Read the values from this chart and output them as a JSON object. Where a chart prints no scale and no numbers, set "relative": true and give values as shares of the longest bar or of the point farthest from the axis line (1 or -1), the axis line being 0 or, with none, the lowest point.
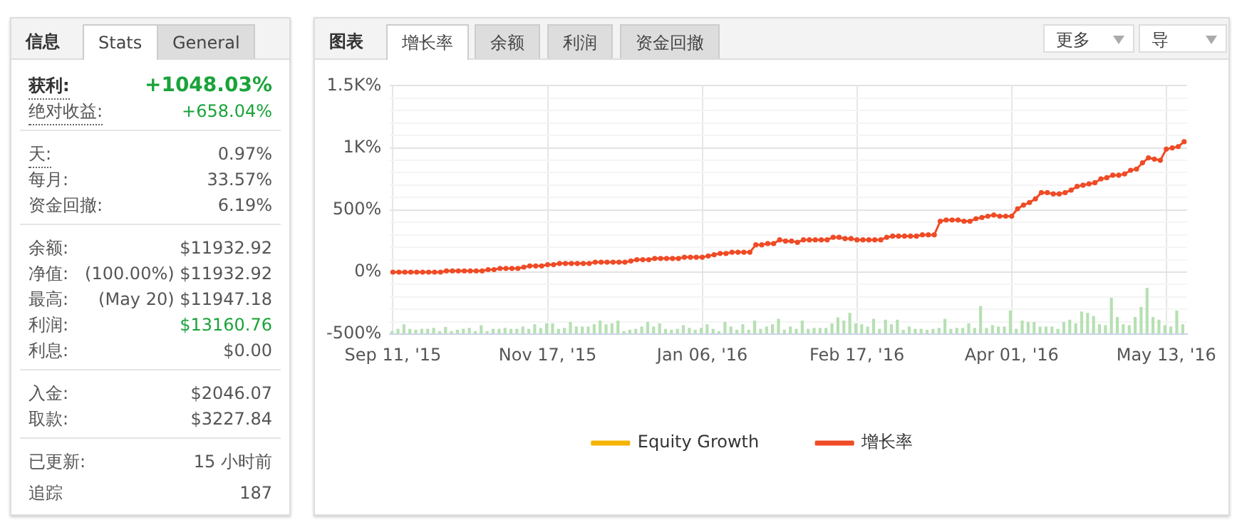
{
  "chart_data": [
    {
      "type": "other",
      "title": "信息",
      "annotations": [
        "Stats",
        "General",
        "获利:",
        "+1048.03%",
        "绝对收益:",
        "+658.04%",
        "天:",
        "0.97%",
        "每月:",
        "33.57%",
        "资金回撤:",
        "6.19%",
        "余额:",
        "$11932.92",
        "净值:",
        "(100.00%) $11932.92",
        "最高:",
        "(May 20) $11947.18",
        "利润:",
        "$13160.76",
        "利息:",
        "$0.00",
        "入金:",
        "$2046.07",
        "取款:",
        "$3227.84",
        "已更新:",
        "15 小时前",
        "追踪",
        "187"
      ]
    },
    {
      "type": "line",
      "title": "图表",
      "annotations": [
        "增长率",
        "余额",
        "利润",
        "资金回撤",
        "更多",
        "导"
      ],
      "categories": [
        "Sep 11, '15",
        null,
        null,
        null,
        null,
        null,
        null,
        null,
        null,
        null,
        null,
        null,
        null,
        null,
        null,
        null,
        null,
        null,
        null,
        null,
        null,
        null,
        null,
        null,
        null,
        null,
        "Nov 17, '15",
        null,
        null,
        null,
        null,
        null,
        null,
        null,
        null,
        null,
        null,
        null,
        null,
        null,
        null,
        null,
        null,
        null,
        null,
        null,
        null,
        null,
        null,
        null,
        null,
        null,
        "Jan 06, '16",
        null,
        null,
        null,
        null,
        null,
        null,
        null,
        null,
        null,
        null,
        null,
        null,
        null,
        null,
        null,
        null,
        null,
        null,
        null,
        null,
        null,
        null,
        null,
        null,
        null,
        "Feb 17, '16",
        null,
        null,
        null,
        null,
        null,
        null,
        null,
        null,
        null,
        null,
        null,
        null,
        null,
        null,
        null,
        null,
        null,
        null,
        null,
        null,
        null,
        null,
        null,
        null,
        null,
        "Apr 01, '16",
        null,
        null,
        null,
        null,
        null,
        null,
        null,
        null,
        null,
        null,
        null,
        null,
        null,
        null,
        null,
        null,
        null,
        null,
        null,
        null,
        null,
        null,
        null,
        null,
        null,
        "May 13, '16",
        null,
        null,
        null
      ],
      "series": [
        {
          "name": "Equity Growth",
          "color": "#f5b400",
          "values": [
            null,
            null,
            null,
            null,
            null,
            null,
            null,
            null,
            null,
            null,
            null,
            null,
            null,
            null,
            null,
            null,
            null,
            null,
            null,
            null,
            null,
            null,
            null,
            null,
            null,
            null,
            null,
            null,
            null,
            null,
            null,
            null,
            null,
            null,
            null,
            null,
            null,
            null,
            null,
            null,
            null,
            null,
            null,
            null,
            null,
            null,
            null,
            null,
            null,
            null,
            null,
            null,
            null,
            null,
            null,
            null,
            null,
            null,
            null,
            null,
            null,
            null,
            null,
            null,
            null,
            null,
            null,
            null,
            null,
            null,
            null,
            null,
            null,
            null,
            null,
            null,
            null,
            null,
            null,
            null,
            null,
            null,
            null,
            null,
            null,
            null,
            null,
            null,
            null,
            null,
            null,
            null,
            null,
            null,
            null,
            null,
            null,
            null,
            null,
            null,
            null,
            null,
            null,
            null,
            null,
            null,
            null,
            null,
            null,
            null,
            null,
            null,
            null,
            null,
            null,
            null,
            null,
            null,
            null,
            null,
            null,
            null,
            null,
            null,
            null,
            null,
            null,
            null,
            null,
            null,
            null,
            null,
            null,
            null
          ]
        },
        {
          "name": "增长率",
          "color": "#ef4b26",
          "values": [
            0,
            0,
            0,
            0,
            0,
            0,
            0,
            0,
            0,
            10,
            10,
            10,
            10,
            10,
            10,
            10,
            20,
            20,
            30,
            30,
            30,
            30,
            40,
            50,
            50,
            50,
            60,
            60,
            70,
            70,
            70,
            70,
            70,
            70,
            80,
            80,
            80,
            80,
            80,
            80,
            90,
            100,
            100,
            100,
            110,
            110,
            110,
            110,
            110,
            120,
            120,
            120,
            120,
            130,
            140,
            150,
            150,
            160,
            160,
            160,
            160,
            220,
            220,
            230,
            230,
            260,
            250,
            250,
            240,
            260,
            260,
            260,
            260,
            260,
            280,
            280,
            270,
            270,
            260,
            260,
            260,
            260,
            260,
            280,
            290,
            290,
            290,
            290,
            290,
            300,
            300,
            300,
            410,
            420,
            420,
            420,
            410,
            410,
            430,
            440,
            450,
            460,
            450,
            450,
            450,
            510,
            540,
            560,
            590,
            640,
            640,
            630,
            630,
            640,
            660,
            690,
            700,
            710,
            720,
            750,
            760,
            780,
            780,
            790,
            820,
            830,
            880,
            920,
            910,
            900,
            990,
            1000,
            1010,
            1050
          ]
        }
      ],
      "ylim": [
        -500,
        1500
      ],
      "yticks": [
        {
          "value": -500,
          "label": "-500%"
        },
        {
          "value": -400,
          "label": null
        },
        {
          "value": -300,
          "label": null
        },
        {
          "value": -200,
          "label": null
        },
        {
          "value": -100,
          "label": null
        },
        {
          "value": 0,
          "label": "0%"
        },
        {
          "value": 100,
          "label": null
        },
        {
          "value": 200,
          "label": null
        },
        {
          "value": 300,
          "label": null
        },
        {
          "value": 400,
          "label": null
        },
        {
          "value": 500,
          "label": "500%"
        },
        {
          "value": 600,
          "label": null
        },
        {
          "value": 700,
          "label": null
        },
        {
          "value": 800,
          "label": null
        },
        {
          "value": 900,
          "label": null
        },
        {
          "value": 1000,
          "label": "1K%"
        },
        {
          "value": 1100,
          "label": null
        },
        {
          "value": 1200,
          "label": null
        },
        {
          "value": 1300,
          "label": null
        },
        {
          "value": 1400,
          "label": null
        },
        {
          "value": 1500,
          "label": "1.5K%"
        }
      ],
      "grid": true,
      "legend": "bottom",
      "marker": "circle",
      "line_style": "solid"
    },
    {
      "type": "bar",
      "relative": true,
      "color": "#b6e0b2",
      "categories": [
        null,
        null,
        null,
        null,
        null,
        null,
        null,
        null,
        null,
        null,
        null,
        null,
        null,
        null,
        null,
        null,
        null,
        null,
        null,
        null,
        null,
        null,
        null,
        null,
        null,
        null,
        null,
        null,
        null,
        null,
        null,
        null,
        null,
        null,
        null,
        null,
        null,
        null,
        null,
        null,
        null,
        null,
        null,
        null,
        null,
        null,
        null,
        null,
        null,
        null,
        null,
        null,
        null,
        null,
        null,
        null,
        null,
        null,
        null,
        null,
        null,
        null,
        null,
        null,
        null,
        null,
        null,
        null,
        null,
        null,
        null,
        null,
        null,
        null,
        null,
        null,
        null,
        null,
        null,
        null,
        null,
        null,
        null,
        null,
        null,
        null,
        null,
        null,
        null,
        null,
        null,
        null,
        null,
        null,
        null,
        null,
        null,
        null,
        null,
        null,
        null,
        null,
        null,
        null,
        null,
        null,
        null,
        null,
        null,
        null,
        null,
        null,
        null,
        null,
        null,
        null,
        null,
        null,
        null,
        null,
        null,
        null,
        null,
        null,
        null,
        null,
        null,
        null,
        null,
        null,
        null,
        null,
        null,
        null
      ],
      "values": [
        0.05,
        0.1,
        0.2,
        0.1,
        0.08,
        0.1,
        0.1,
        0.12,
        0.05,
        0.14,
        0.05,
        0.08,
        0.1,
        0.12,
        0.05,
        0.18,
        0.05,
        0.1,
        0.1,
        0.12,
        0.1,
        0.1,
        0.15,
        0.1,
        0.2,
        0.12,
        0.22,
        0.22,
        0.1,
        0.12,
        0.25,
        0.15,
        0.15,
        0.15,
        0.2,
        0.28,
        0.2,
        0.22,
        0.28,
        0.05,
        0.08,
        0.1,
        0.15,
        0.25,
        0.15,
        0.22,
        0.1,
        0.08,
        0.1,
        0.18,
        0.12,
        0.08,
        0.12,
        0.2,
        0.1,
        0.05,
        0.25,
        0.15,
        0.08,
        0.2,
        0.08,
        0.28,
        0.1,
        0.15,
        0.2,
        0.32,
        0.08,
        0.15,
        0.1,
        0.28,
        0.1,
        0.12,
        0.12,
        0.12,
        0.22,
        0.35,
        0.28,
        0.45,
        0.22,
        0.2,
        0.15,
        0.32,
        0.1,
        0.3,
        0.2,
        0.3,
        0.08,
        0.15,
        0.1,
        0.1,
        0.08,
        0.1,
        0.12,
        0.32,
        0.1,
        0.12,
        0.12,
        0.22,
        0.12,
        0.6,
        0.12,
        0.18,
        0.15,
        0.15,
        0.5,
        0.1,
        0.28,
        0.25,
        0.25,
        0.15,
        0.15,
        0.15,
        0.1,
        0.25,
        0.3,
        0.22,
        0.48,
        0.45,
        0.38,
        0.2,
        0.18,
        0.78,
        0.36,
        0.2,
        0.18,
        0.36,
        0.58,
        1.0,
        0.36,
        0.3,
        0.18,
        0.15,
        0.5,
        0.2
      ]
    }
  ]
}
